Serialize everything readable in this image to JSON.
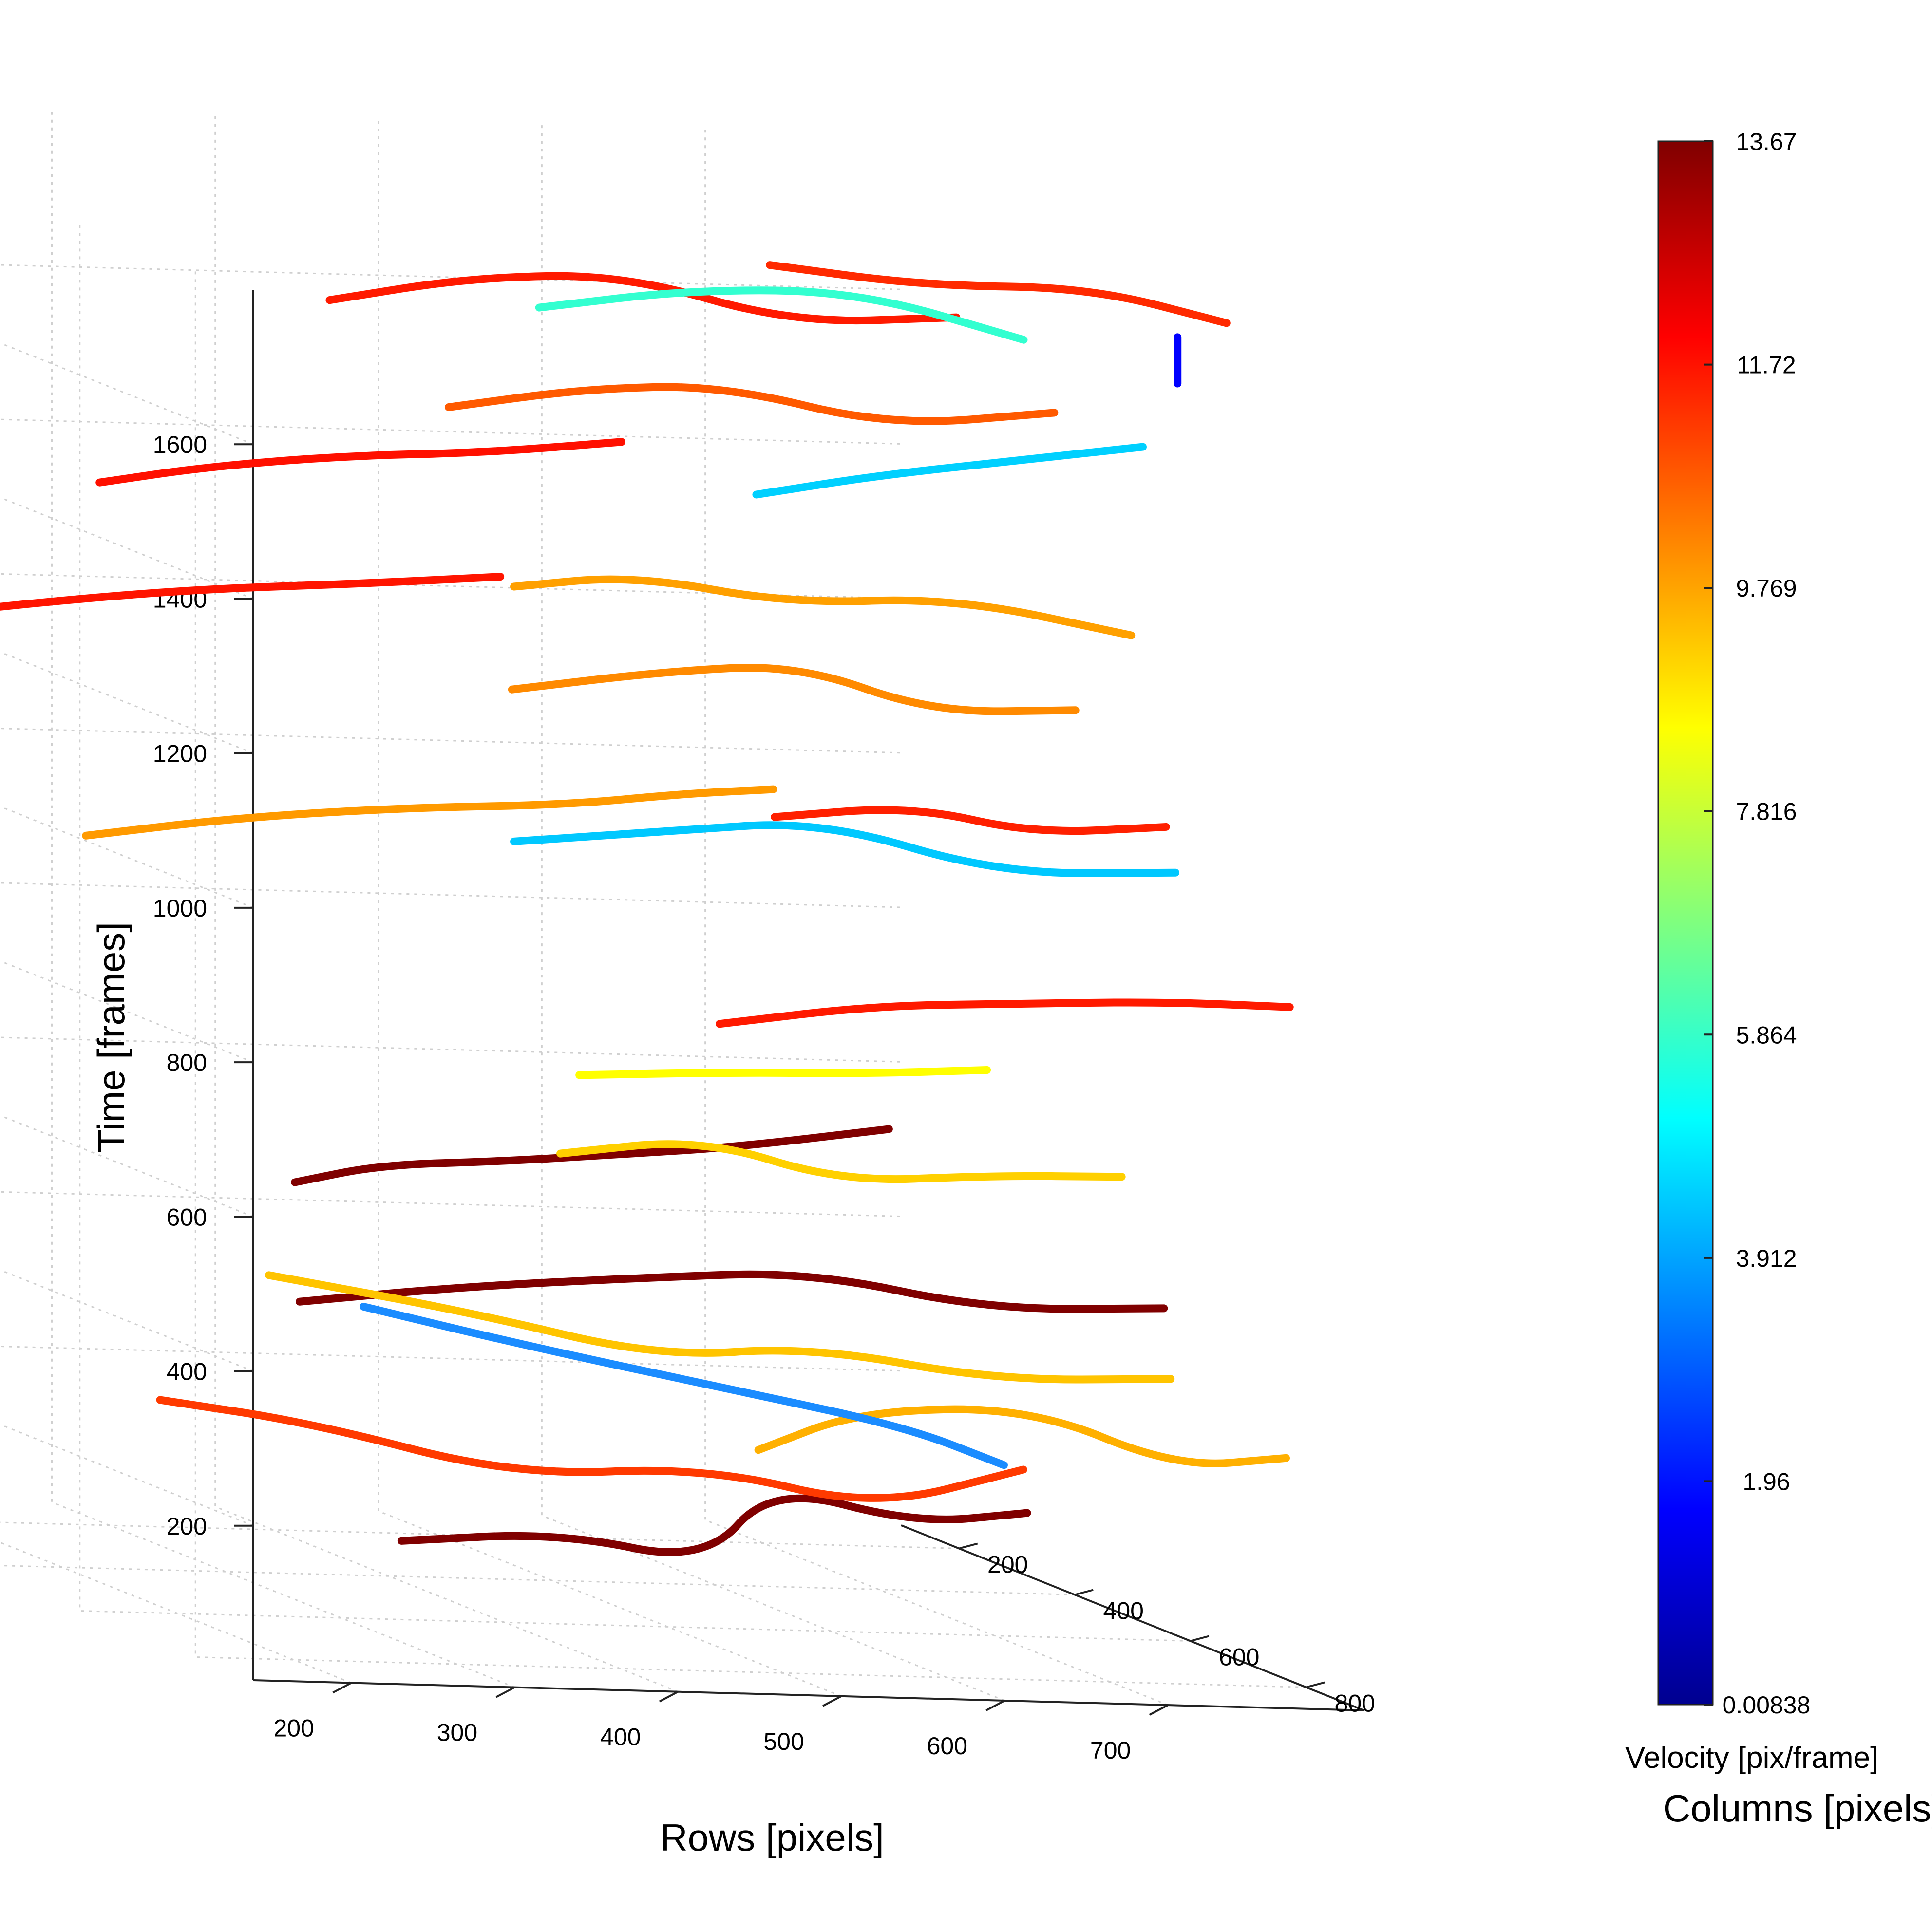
{
  "chart_data": {
    "type": "line",
    "projection": "3d",
    "title": "",
    "xlabel": "Rows [pixels]",
    "ylabel": "Columns [pixels]",
    "zlabel": "Time [frames]",
    "xticks": [
      200,
      300,
      400,
      500,
      600,
      700
    ],
    "yticks": [
      200,
      400,
      600,
      800
    ],
    "zticks": [
      200,
      400,
      600,
      800,
      1000,
      1200,
      1400,
      1600
    ],
    "xlim": [
      140,
      820
    ],
    "ylim": [
      100,
      900
    ],
    "zlim": [
      0,
      1800
    ],
    "grid": true,
    "colorbar": {
      "title": "Velocity [pix/frame]",
      "colormap": "jet",
      "range": [
        0.00838,
        13.67
      ],
      "tick_labels": [
        "0.00838",
        "1.96",
        "3.912",
        "5.864",
        "7.816",
        "9.769",
        "11.72",
        "13.67"
      ]
    },
    "series": [
      {
        "color": "#800000",
        "points": [
          [
            390,
            450,
            60
          ],
          [
            470,
            500,
            90
          ],
          [
            540,
            550,
            70
          ],
          [
            610,
            470,
            150
          ],
          [
            680,
            520,
            120
          ],
          [
            720,
            600,
            160
          ]
        ]
      },
      {
        "color": "#ff3a00",
        "points": [
          [
            260,
            400,
            220
          ],
          [
            360,
            380,
            190
          ],
          [
            470,
            420,
            140
          ],
          [
            560,
            500,
            180
          ],
          [
            640,
            560,
            150
          ],
          [
            700,
            650,
            230
          ]
        ]
      },
      {
        "color": "#ffb000",
        "points": [
          [
            520,
            700,
            260
          ],
          [
            600,
            650,
            300
          ],
          [
            680,
            720,
            330
          ],
          [
            740,
            800,
            280
          ],
          [
            790,
            850,
            310
          ]
        ]
      },
      {
        "color": "#1b8cff",
        "points": [
          [
            420,
            300,
            320
          ],
          [
            500,
            350,
            290
          ],
          [
            600,
            420,
            260
          ],
          [
            680,
            500,
            240
          ],
          [
            720,
            560,
            210
          ]
        ]
      },
      {
        "color": "#800000",
        "points": [
          [
            310,
            500,
            380
          ],
          [
            400,
            520,
            410
          ],
          [
            500,
            560,
            440
          ],
          [
            580,
            620,
            470
          ],
          [
            660,
            700,
            450
          ],
          [
            740,
            780,
            480
          ]
        ]
      },
      {
        "color": "#ffc400",
        "points": [
          [
            270,
            560,
            430
          ],
          [
            380,
            600,
            400
          ],
          [
            480,
            640,
            360
          ],
          [
            560,
            680,
            390
          ],
          [
            650,
            740,
            370
          ],
          [
            730,
            820,
            400
          ]
        ]
      },
      {
        "color": "#800000",
        "points": [
          [
            300,
            520,
            540
          ],
          [
            360,
            500,
            560
          ],
          [
            420,
            540,
            580
          ],
          [
            470,
            600,
            610
          ],
          [
            520,
            660,
            640
          ],
          [
            600,
            700,
            680
          ]
        ]
      },
      {
        "color": "#ffd000",
        "points": [
          [
            420,
            640,
            620
          ],
          [
            500,
            660,
            650
          ],
          [
            570,
            700,
            610
          ],
          [
            640,
            760,
            640
          ],
          [
            700,
            820,
            660
          ]
        ]
      },
      {
        "color": "#ffff00",
        "points": [
          [
            460,
            560,
            700
          ],
          [
            540,
            600,
            720
          ],
          [
            600,
            660,
            740
          ],
          [
            660,
            700,
            760
          ]
        ]
      },
      {
        "color": "#ff1a00",
        "points": [
          [
            560,
            520,
            760
          ],
          [
            640,
            560,
            800
          ],
          [
            700,
            640,
            830
          ],
          [
            760,
            720,
            860
          ],
          [
            810,
            800,
            880
          ]
        ]
      },
      {
        "color": "#ff9a00",
        "points": [
          [
            250,
            300,
            920
          ],
          [
            330,
            340,
            960
          ],
          [
            420,
            380,
            990
          ],
          [
            500,
            420,
            1010
          ],
          [
            560,
            460,
            1040
          ],
          [
            600,
            500,
            1060
          ]
        ]
      },
      {
        "color": "#00c8ff",
        "points": [
          [
            420,
            560,
            1000
          ],
          [
            500,
            600,
            1030
          ],
          [
            580,
            640,
            1060
          ],
          [
            660,
            720,
            1020
          ],
          [
            740,
            800,
            1050
          ]
        ]
      },
      {
        "color": "#ff2000",
        "points": [
          [
            530,
            700,
            1080
          ],
          [
            600,
            740,
            1110
          ],
          [
            660,
            780,
            1090
          ],
          [
            720,
            840,
            1120
          ]
        ]
      },
      {
        "color": "#ff8a00",
        "points": [
          [
            440,
            500,
            1180
          ],
          [
            520,
            540,
            1220
          ],
          [
            580,
            600,
            1250
          ],
          [
            640,
            660,
            1210
          ],
          [
            700,
            740,
            1240
          ]
        ]
      },
      {
        "color": "#ff1500",
        "points": [
          [
            150,
            300,
            1200
          ],
          [
            230,
            320,
            1230
          ],
          [
            300,
            360,
            1260
          ],
          [
            380,
            420,
            1290
          ],
          [
            440,
            480,
            1320
          ]
        ]
      },
      {
        "color": "#ffa000",
        "points": [
          [
            420,
            560,
            1330
          ],
          [
            480,
            600,
            1360
          ],
          [
            560,
            640,
            1340
          ],
          [
            640,
            700,
            1370
          ],
          [
            720,
            780,
            1350
          ]
        ]
      },
      {
        "color": "#ff1000",
        "points": [
          [
            230,
            380,
            1400
          ],
          [
            290,
            400,
            1430
          ],
          [
            360,
            440,
            1460
          ],
          [
            430,
            480,
            1480
          ],
          [
            500,
            520,
            1510
          ]
        ]
      },
      {
        "color": "#ff5a00",
        "points": [
          [
            380,
            560,
            1560
          ],
          [
            450,
            600,
            1600
          ],
          [
            520,
            640,
            1620
          ],
          [
            600,
            700,
            1590
          ],
          [
            680,
            760,
            1630
          ]
        ]
      },
      {
        "color": "#00d0ff",
        "points": [
          [
            540,
            640,
            1480
          ],
          [
            600,
            680,
            1520
          ],
          [
            660,
            740,
            1560
          ],
          [
            720,
            800,
            1600
          ]
        ]
      },
      {
        "color": "#ff1a00",
        "points": [
          [
            300,
            580,
            1700
          ],
          [
            380,
            600,
            1740
          ],
          [
            460,
            640,
            1760
          ],
          [
            540,
            700,
            1720
          ],
          [
            620,
            760,
            1750
          ]
        ]
      },
      {
        "color": "#33ffd0",
        "points": [
          [
            400,
            660,
            1720
          ],
          [
            480,
            700,
            1760
          ],
          [
            560,
            760,
            1780
          ],
          [
            640,
            820,
            1740
          ]
        ]
      },
      {
        "color": "#ff2a00",
        "points": [
          [
            520,
            720,
            1800
          ],
          [
            600,
            760,
            1790
          ],
          [
            680,
            820,
            1810
          ],
          [
            750,
            860,
            1780
          ]
        ]
      },
      {
        "color": "#0000ff",
        "points": [
          [
            720,
            860,
            1700
          ],
          [
            720,
            860,
            1760
          ]
        ]
      }
    ]
  }
}
